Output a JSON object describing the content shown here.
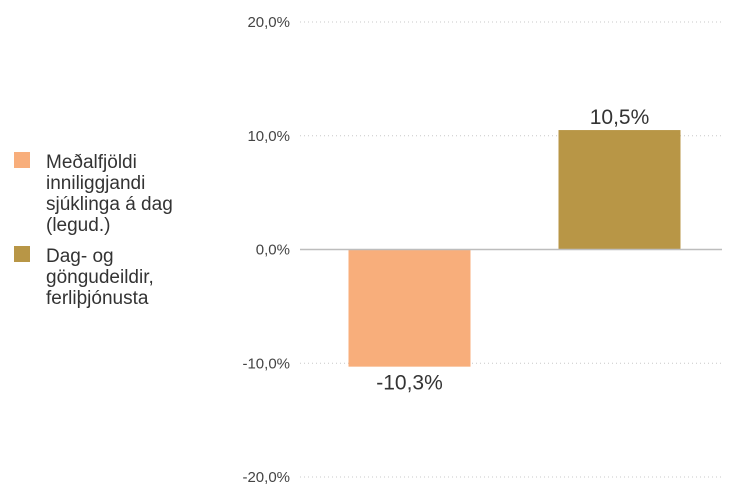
{
  "chart_data": {
    "type": "bar",
    "categories": [
      "Meðalfjöldi inniliggjandi sjúklinga á dag (legud.)",
      "Dag- og göngudeildir, ferliþjónusta"
    ],
    "values": [
      -10.3,
      10.5
    ],
    "data_labels": [
      "-10,3%",
      "10,5%"
    ],
    "colors": [
      "#f8ae7b",
      "#b89646"
    ],
    "yticks": [
      "20,0%",
      "10,0%",
      "0,0%",
      "-10,0%",
      "-20,0%"
    ],
    "ytick_values": [
      20,
      10,
      0,
      -10,
      -20
    ],
    "ylim": [
      -20,
      20
    ],
    "grid": true,
    "legend": {
      "position": "left",
      "items": [
        {
          "label": "Meðalfjöldi\ninniliggjandi\nsjúklinga á dag\n(legud.)",
          "color": "#f8ae7b"
        },
        {
          "label": "Dag- og\ngöngudeildir,\nferliþjónusta",
          "color": "#b89646"
        }
      ]
    }
  }
}
